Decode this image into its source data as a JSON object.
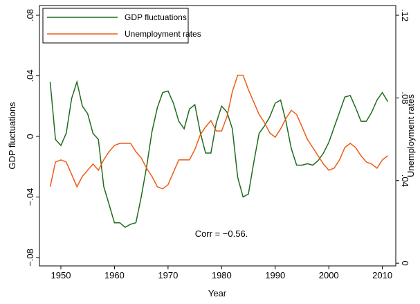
{
  "chart_data": {
    "type": "line",
    "x_label": "Year",
    "y_label": "GDP fluctuations",
    "y2_label": "Unemployment rates",
    "annotation": "Corr = −0.56.",
    "x": [
      1948,
      1949,
      1950,
      1951,
      1952,
      1953,
      1954,
      1955,
      1956,
      1957,
      1958,
      1959,
      1960,
      1961,
      1962,
      1963,
      1964,
      1965,
      1966,
      1967,
      1968,
      1969,
      1970,
      1971,
      1972,
      1973,
      1974,
      1975,
      1976,
      1977,
      1978,
      1979,
      1980,
      1981,
      1982,
      1983,
      1984,
      1985,
      1986,
      1987,
      1988,
      1989,
      1990,
      1991,
      1992,
      1993,
      1994,
      1995,
      1996,
      1997,
      1998,
      1999,
      2000,
      2001,
      2002,
      2003,
      2004,
      2005,
      2006,
      2007,
      2008,
      2009,
      2010,
      2011
    ],
    "series": [
      {
        "name": "GDP fluctuations",
        "color": "#1e6b1e",
        "values": [
          0.036,
          -0.002,
          -0.006,
          0.002,
          0.025,
          0.036,
          0.02,
          0.015,
          0.002,
          -0.002,
          -0.033,
          -0.045,
          -0.057,
          -0.057,
          -0.06,
          -0.058,
          -0.057,
          -0.04,
          -0.02,
          0.003,
          0.019,
          0.029,
          0.03,
          0.022,
          0.01,
          0.005,
          0.018,
          0.021,
          0.003,
          -0.011,
          -0.011,
          0.009,
          0.02,
          0.016,
          0.005,
          -0.027,
          -0.04,
          -0.038,
          -0.017,
          0.002,
          0.007,
          0.013,
          0.022,
          0.024,
          0.01,
          -0.008,
          -0.019,
          -0.019,
          -0.018,
          -0.019,
          -0.016,
          -0.011,
          -0.004,
          0.006,
          0.016,
          0.026,
          0.027,
          0.019,
          0.01,
          0.01,
          0.016,
          0.024,
          0.029,
          0.023
        ]
      },
      {
        "name": "Unemployment rates",
        "color": "#f05a14",
        "axis": "y2",
        "values": [
          0.037,
          0.049,
          0.05,
          0.049,
          0.043,
          0.037,
          0.042,
          0.045,
          0.048,
          0.045,
          0.05,
          0.054,
          0.057,
          0.058,
          0.058,
          0.058,
          0.054,
          0.051,
          0.046,
          0.042,
          0.037,
          0.036,
          0.038,
          0.044,
          0.05,
          0.05,
          0.05,
          0.055,
          0.062,
          0.066,
          0.069,
          0.064,
          0.064,
          0.071,
          0.083,
          0.091,
          0.091,
          0.084,
          0.078,
          0.072,
          0.068,
          0.063,
          0.061,
          0.065,
          0.07,
          0.074,
          0.072,
          0.066,
          0.06,
          0.056,
          0.052,
          0.048,
          0.045,
          0.046,
          0.05,
          0.056,
          0.058,
          0.056,
          0.052,
          0.049,
          0.048,
          0.046,
          0.05,
          0.052
        ]
      }
    ],
    "xlim": [
      1946,
      2012.5
    ],
    "xticks": [
      1950,
      1960,
      1970,
      1980,
      1990,
      2000,
      2010
    ],
    "ylim": [
      -0.0855,
      0.0864
    ],
    "yticks": [
      {
        "value": -0.08,
        "label": "−.08"
      },
      {
        "value": -0.04,
        "label": "−.04"
      },
      {
        "value": 0,
        "label": "0"
      },
      {
        "value": 0.04,
        "label": ".04"
      },
      {
        "value": 0.08,
        "label": ".08"
      }
    ],
    "y2lim": [
      -0.0013,
      0.1247
    ],
    "y2ticks": [
      0,
      {
        "value": 0.04,
        "label": ".04"
      },
      {
        "value": 0.08,
        "label": ".08"
      },
      {
        "value": 0.12,
        "label": ".12"
      }
    ],
    "legend": "upper-left",
    "grid": false
  }
}
